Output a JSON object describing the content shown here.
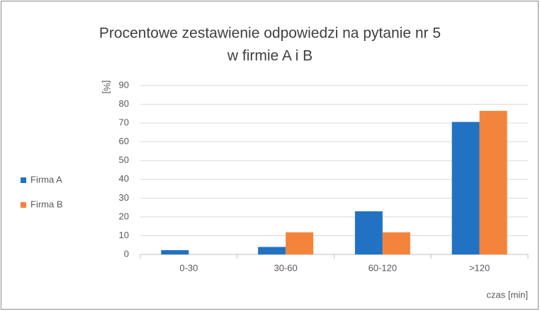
{
  "chart_data": {
    "type": "bar",
    "title": [
      "Procentowe zestawienie odpowiedzi na pytanie nr 5",
      "w firmie A i B"
    ],
    "y_label": "[%]",
    "x_label": "czas [min]",
    "categories": [
      "0-30",
      "30-60",
      "60-120",
      ">120"
    ],
    "series": [
      {
        "name": "Firma A",
        "color": "#2272c3",
        "values": [
          2.3,
          4,
          23,
          70.6
        ]
      },
      {
        "name": "Firma B",
        "color": "#f4843b",
        "values": [
          0,
          11.8,
          11.8,
          76.5
        ]
      }
    ],
    "ylim": [
      0,
      90
    ],
    "yticks": [
      0,
      10,
      20,
      30,
      40,
      50,
      60,
      70,
      80,
      90
    ],
    "grid": true,
    "legend": "left"
  }
}
